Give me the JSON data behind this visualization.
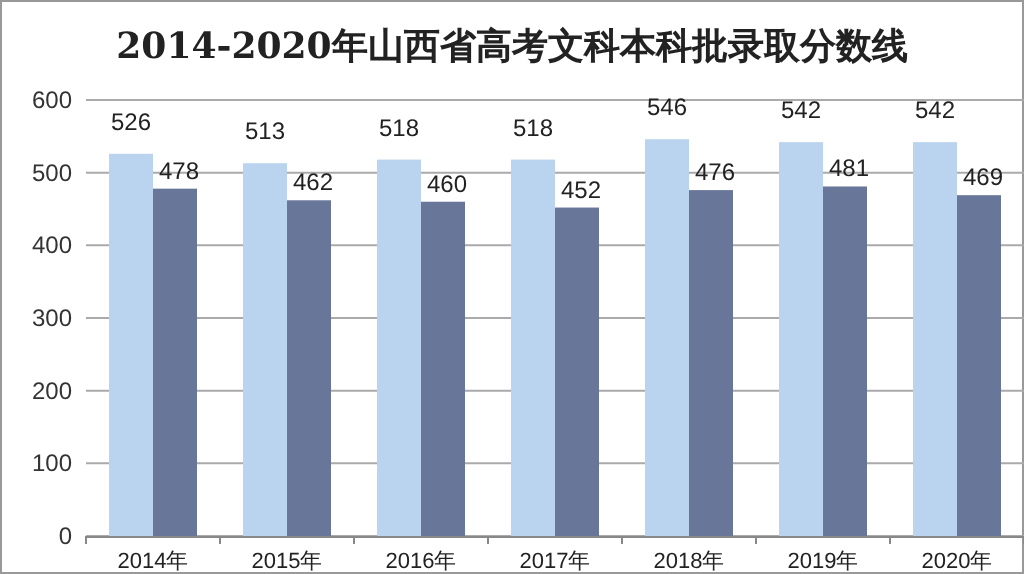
{
  "chart_data": {
    "type": "bar",
    "title": "2014-2020年山西省高考文科本科批录取分数线",
    "categories": [
      "2014年",
      "2015年",
      "2016年",
      "2017年",
      "2018年",
      "2019年",
      "2020年"
    ],
    "series": [
      {
        "color": "#bad4ef",
        "values": [
          526,
          513,
          518,
          518,
          546,
          542,
          542
        ]
      },
      {
        "color": "#68769a",
        "values": [
          478,
          462,
          460,
          452,
          476,
          481,
          469
        ]
      }
    ],
    "ylim": [
      0,
      600
    ],
    "yticks": [
      0,
      100,
      200,
      300,
      400,
      500,
      600
    ],
    "grid": "y",
    "data_labels": true
  }
}
